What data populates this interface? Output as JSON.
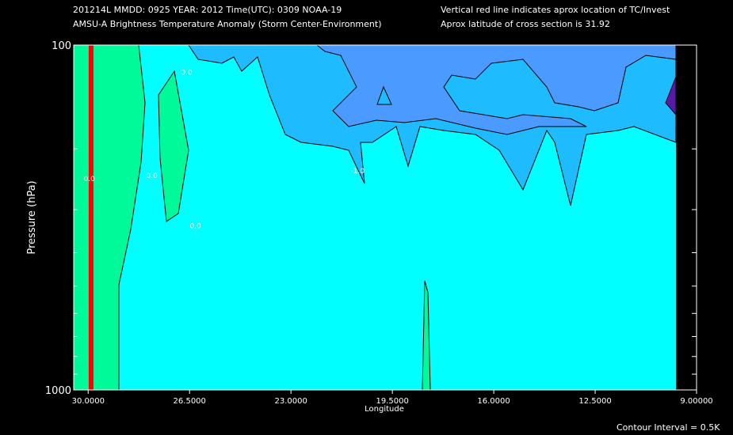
{
  "header": {
    "line1": "201214L  MMDD: 0925 YEAR: 2012 Time(UTC): 0309 NOAA-19",
    "line2": "AMSU-A Brightness Temperature Anomaly (Storm Center-Environment)",
    "line3": "Vertical red line indicates aprox location of TC/Invest",
    "line4": "Aprox latitude of cross section is 31.92"
  },
  "footer": {
    "contour_interval": "Contour Interval = 0.5K"
  },
  "colors": {
    "background": "#000000",
    "anomaly_pos_0_5": "#00fa9a",
    "anomaly_0": "#00ffff",
    "anomaly_neg_0_5": "#1ebcff",
    "anomaly_neg_1": "#4a9aff",
    "anomaly_neg_1_5": "#5a1aa8",
    "tc_line": "#ff0000"
  },
  "chart_data": {
    "type": "contour",
    "title": "AMSU-A Brightness Temperature Anomaly (Storm Center-Environment)",
    "xlabel": "Longitude",
    "ylabel": "Pressure (hPa)",
    "xlim": [
      30.5,
      9.0
    ],
    "ylim": [
      100,
      1000
    ],
    "y_scale": "log",
    "x_ticks": [
      "30.0000",
      "26.5000",
      "23.0000",
      "19.5000",
      "16.0000",
      "12.5000",
      "9.00000"
    ],
    "x_tick_values": [
      30.0,
      26.5,
      23.0,
      19.5,
      16.0,
      12.5,
      9.0
    ],
    "y_ticks": [
      "100",
      "1000"
    ],
    "y_tick_values": [
      100,
      1000
    ],
    "contour_labels": [
      {
        "text": "0.0",
        "x": 26.6,
        "p": 122
      },
      {
        "text": "0.0",
        "x": 29.96,
        "p": 248
      },
      {
        "text": "0.0",
        "x": 27.8,
        "p": 243
      },
      {
        "text": "0.0",
        "x": 26.3,
        "p": 340
      },
      {
        "text": "-1.0",
        "x": 20.7,
        "p": 235
      }
    ],
    "tc_location_longitude": 29.9,
    "latitude": 31.92,
    "contour_interval_K": 0.5,
    "grid": false
  }
}
